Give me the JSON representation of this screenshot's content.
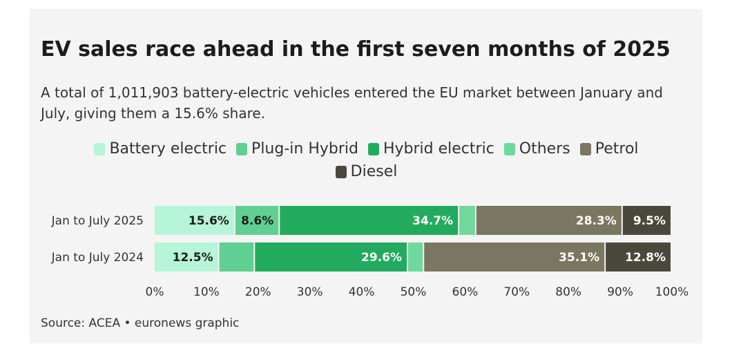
{
  "title": "EV sales race ahead in the first seven months of 2025",
  "subtitle": "A total of 1,011,903 battery-electric vehicles entered the EU market between January and July, giving them a 15.6% share.",
  "source": "Source: ACEA • euronews graphic",
  "chart_data": {
    "type": "bar",
    "orientation": "horizontal",
    "stacked": true,
    "categories": [
      "Jan to July 2025",
      "Jan to July 2024"
    ],
    "series": [
      {
        "name": "Battery electric",
        "color": "#b6f5d8",
        "values": [
          15.6,
          12.5
        ],
        "labels": [
          "15.6%",
          "12.5%"
        ]
      },
      {
        "name": "Plug-in Hybrid",
        "color": "#5fd091",
        "values": [
          8.6,
          6.9
        ],
        "labels": [
          "8.6%",
          ""
        ]
      },
      {
        "name": "Hybrid electric",
        "color": "#22ab5e",
        "values": [
          34.7,
          29.6
        ],
        "labels": [
          "34.7%",
          "29.6%"
        ]
      },
      {
        "name": "Others",
        "color": "#6fd99c",
        "values": [
          3.3,
          3.1
        ],
        "labels": [
          "",
          ""
        ]
      },
      {
        "name": "Petrol",
        "color": "#7b7660",
        "values": [
          28.3,
          35.1
        ],
        "labels": [
          "28.3%",
          "35.1%"
        ]
      },
      {
        "name": "Diesel",
        "color": "#4a473c",
        "values": [
          9.5,
          12.8
        ],
        "labels": [
          "9.5%",
          "12.8%"
        ]
      }
    ],
    "xlim": [
      0,
      100
    ],
    "xticks": [
      "0%",
      "10%",
      "20%",
      "30%",
      "40%",
      "50%",
      "60%",
      "70%",
      "80%",
      "90%",
      "100%"
    ],
    "legend_position": "top-center",
    "grid": false
  }
}
